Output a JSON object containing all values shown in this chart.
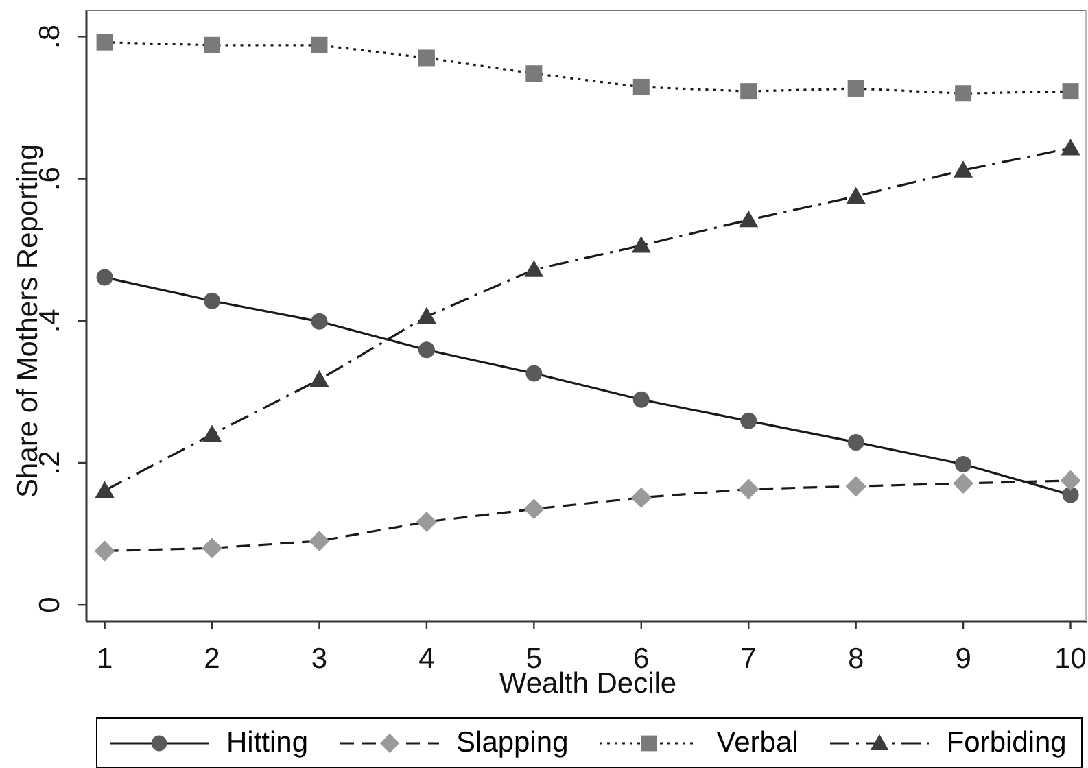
{
  "chart_data": {
    "type": "line",
    "xlabel": "Wealth Decile",
    "ylabel": "Share of Mothers Reporting",
    "x": [
      1,
      2,
      3,
      4,
      5,
      6,
      7,
      8,
      9,
      10
    ],
    "xlim": [
      0.83,
      10.15
    ],
    "xticks": [
      1,
      2,
      3,
      4,
      5,
      6,
      7,
      8,
      9,
      10
    ],
    "ylim": [
      -0.023,
      0.838
    ],
    "yticks": [
      0,
      {
        "value": 0.2,
        "label": ".2"
      },
      {
        "value": 0.4,
        "label": ".4"
      },
      {
        "value": 0.6,
        "label": ".6"
      },
      {
        "value": 0.8,
        "label": ".8"
      }
    ],
    "legend": "bottom",
    "series": [
      {
        "name": "Hitting",
        "color": "#5a5a5a",
        "marker": "circle",
        "line_style": "solid",
        "values": [
          0.461,
          0.428,
          0.399,
          0.359,
          0.326,
          0.289,
          0.259,
          0.229,
          0.198,
          0.155
        ]
      },
      {
        "name": "Slapping",
        "color": "#9a9a9a",
        "marker": "diamond",
        "line_style": "dashed",
        "values": [
          0.076,
          0.08,
          0.09,
          0.117,
          0.135,
          0.151,
          0.163,
          0.167,
          0.171,
          0.175
        ]
      },
      {
        "name": "Verbal",
        "color": "#7a7a7a",
        "marker": "square",
        "line_style": "dotted",
        "values": [
          0.792,
          0.788,
          0.788,
          0.77,
          0.748,
          0.729,
          0.723,
          0.727,
          0.72,
          0.723
        ]
      },
      {
        "name": "Forbiding",
        "color": "#3c3c3c",
        "marker": "triangle",
        "line_style": "dashdot",
        "values": [
          0.161,
          0.24,
          0.317,
          0.406,
          0.472,
          0.506,
          0.542,
          0.575,
          0.612,
          0.643
        ]
      }
    ]
  }
}
